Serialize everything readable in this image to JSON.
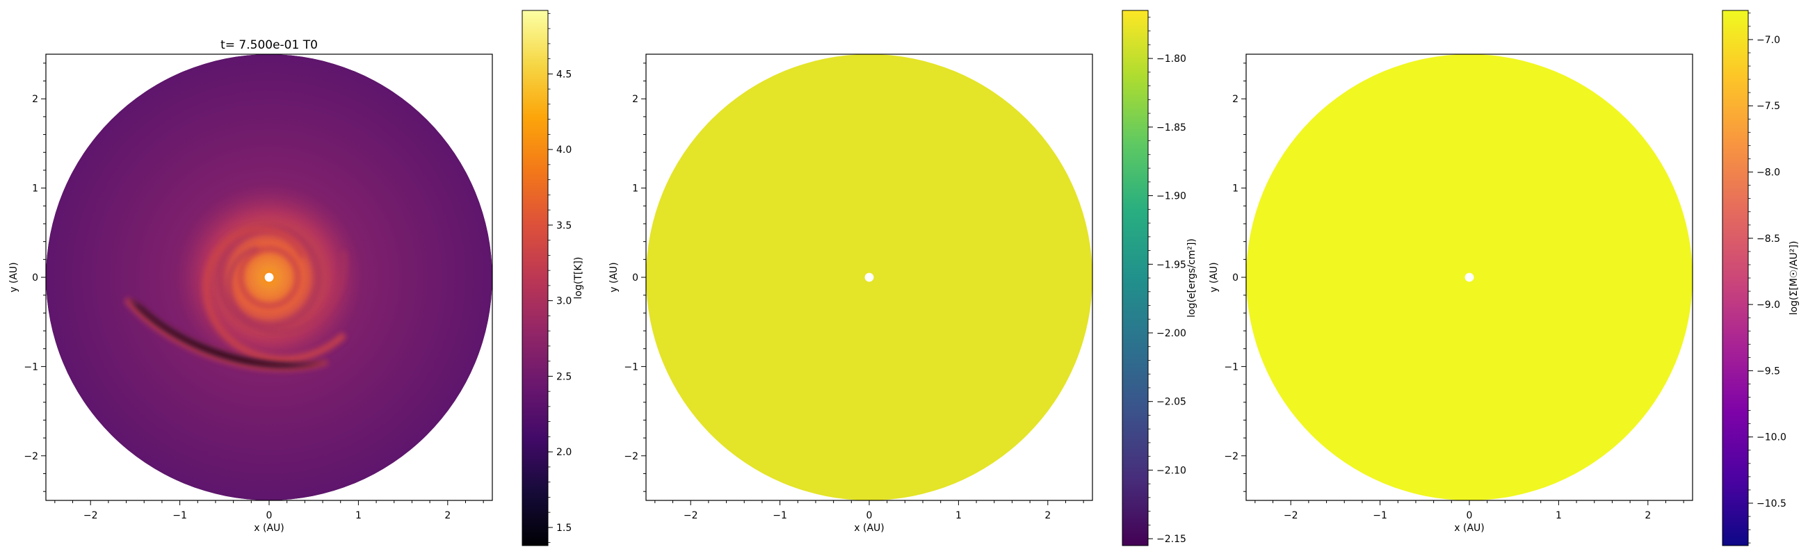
{
  "chart_data": [
    {
      "type": "heatmap",
      "title": "t= 7.500e-01 T0",
      "xlabel": "x (AU)",
      "ylabel": "y (AU)",
      "xlim": [
        -2.5,
        2.5
      ],
      "ylim": [
        -2.5,
        2.5
      ],
      "xticks": [
        -2,
        -1,
        0,
        1,
        2
      ],
      "yticks": [
        -2,
        -1,
        0,
        1,
        2
      ],
      "colorbar": {
        "label": "log(T[K])",
        "colormap": "inferno",
        "range": [
          1.38,
          4.92
        ],
        "ticks": [
          1.5,
          2.0,
          2.5,
          3.0,
          3.5,
          4.0,
          4.5
        ]
      },
      "features": {
        "disk_outer_radius_au": 2.5,
        "inner_hole_radius_au": 0.05,
        "background_log_T": 2.7,
        "spiral_log_T": 3.3,
        "center_log_T": 4.0,
        "cold_region_log_T": 1.5
      }
    },
    {
      "type": "heatmap",
      "title": "",
      "xlabel": "x (AU)",
      "ylabel": "y (AU)",
      "xlim": [
        -2.5,
        2.5
      ],
      "ylim": [
        -2.5,
        2.5
      ],
      "xticks": [
        -2,
        -1,
        0,
        1,
        2
      ],
      "yticks": [
        -2,
        -1,
        0,
        1,
        2
      ],
      "colorbar": {
        "label": "log(e[ergs/cm²])",
        "colormap": "viridis",
        "range": [
          -2.155,
          -1.765
        ],
        "ticks": [
          -1.8,
          -1.85,
          -1.9,
          -1.95,
          -2.0,
          -2.05,
          -2.1,
          -2.15
        ]
      },
      "features": {
        "disk_outer_radius_au": 2.5,
        "inner_hole_radius_au": 0.05,
        "uniform_value": -1.78
      }
    },
    {
      "type": "heatmap",
      "title": "",
      "xlabel": "x (AU)",
      "ylabel": "y (AU)",
      "xlim": [
        -2.5,
        2.5
      ],
      "ylim": [
        -2.5,
        2.5
      ],
      "xticks": [
        -2,
        -1,
        0,
        1,
        2
      ],
      "yticks": [
        -2,
        -1,
        0,
        1,
        2
      ],
      "colorbar": {
        "label": "log(Σ[M☉/AU²])",
        "colormap": "plasma",
        "range": [
          -10.82,
          -6.78
        ],
        "ticks": [
          -7.0,
          -7.5,
          -8.0,
          -8.5,
          -9.0,
          -9.5,
          -10.0,
          -10.5
        ]
      },
      "features": {
        "disk_outer_radius_au": 2.5,
        "inner_hole_radius_au": 0.05,
        "uniform_value": -6.8
      }
    }
  ]
}
